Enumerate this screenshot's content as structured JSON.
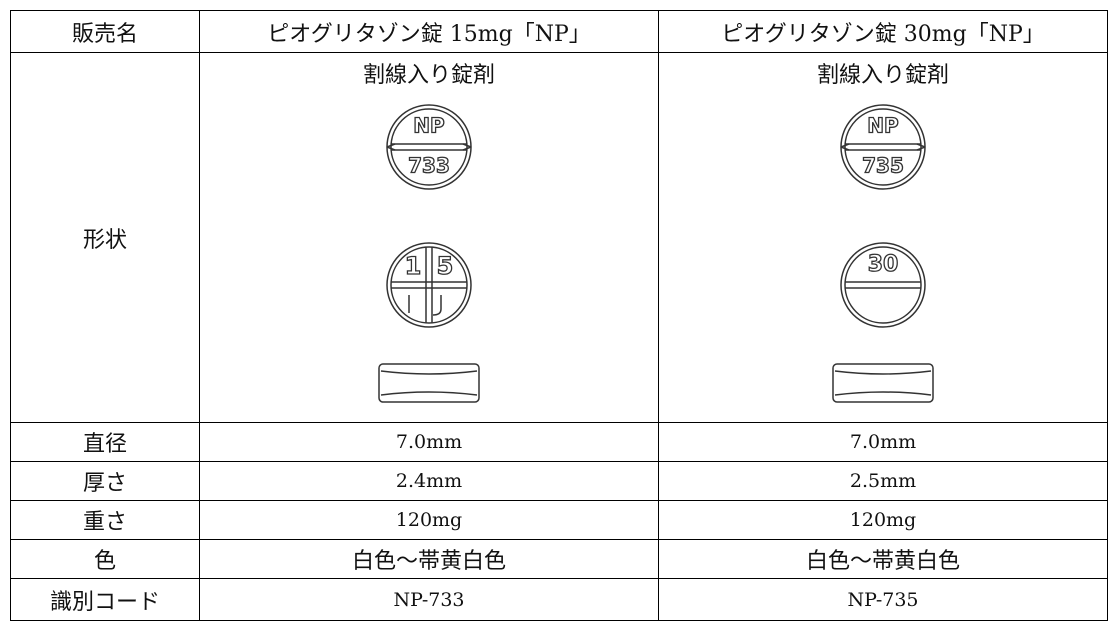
{
  "table": {
    "header": [
      "販売名",
      "ピオグリタゾン錠 15mg「NP」",
      "ピオグリタゾン錠 30mg「NP」"
    ],
    "shape": {
      "label": "形状",
      "cells": [
        {
          "caption": "割線入り錠剤",
          "front": [
            "NP",
            "733"
          ],
          "back": [
            "1",
            "5"
          ]
        },
        {
          "caption": "割線入り錠剤",
          "front": [
            "NP",
            "735"
          ],
          "back": [
            "30"
          ]
        }
      ]
    },
    "rows": [
      [
        "直径",
        "7.0mm",
        "7.0mm"
      ],
      [
        "厚さ",
        "2.4mm",
        "2.5mm"
      ],
      [
        "重さ",
        "120mg",
        "120mg"
      ],
      [
        "色",
        "白色～帯黄白色",
        "白色～帯黄白色"
      ],
      [
        "識別コード",
        "NP-733",
        "NP-735"
      ]
    ]
  }
}
